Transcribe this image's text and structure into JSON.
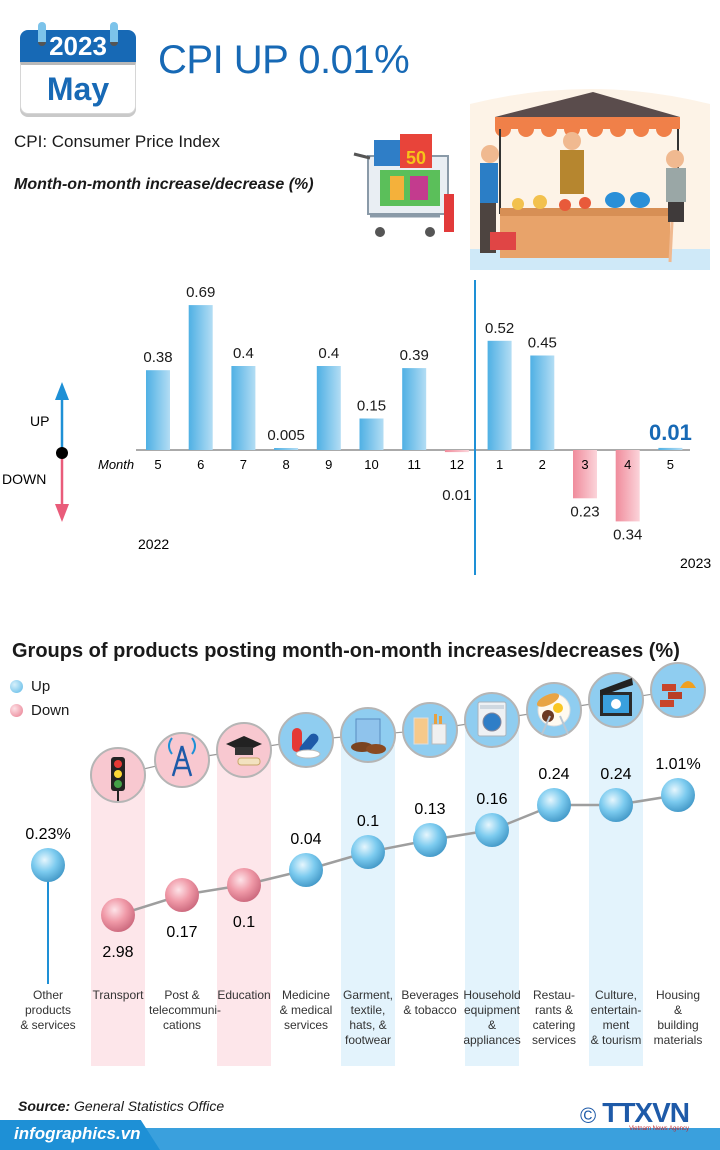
{
  "header": {
    "calendar_year": "2023",
    "calendar_month": "May",
    "title": "CPI UP 0.01%",
    "subtitle": "CPI: Consumer Price Index",
    "chart_caption": "Month-on-month increase/decrease (%)"
  },
  "direction_legend": {
    "up": "UP",
    "down": "DOWN"
  },
  "colors": {
    "up": "#5bb8e6",
    "down": "#f08c9c",
    "accent": "#1769b5",
    "highlight_up_band": "#e3f3fc",
    "highlight_down_band": "#fde6ea"
  },
  "chart_data": [
    {
      "type": "bar",
      "title": "Month-on-month increase/decrease (%)",
      "xlabel": "Month",
      "ylabel": "",
      "categories": [
        "5",
        "6",
        "7",
        "8",
        "9",
        "10",
        "11",
        "12",
        "1",
        "2",
        "3",
        "4",
        "5"
      ],
      "years": [
        {
          "label": "2022",
          "range": [
            0,
            7
          ]
        },
        {
          "label": "2023",
          "range": [
            8,
            12
          ]
        }
      ],
      "values": [
        0.38,
        0.69,
        0.4,
        0.005,
        0.4,
        0.15,
        0.39,
        -0.01,
        0.52,
        0.45,
        -0.23,
        -0.34,
        0.01
      ],
      "labels": [
        "0.38",
        "0.69",
        "0.4",
        "0.005",
        "0.4",
        "0.15",
        "0.39",
        "0.01",
        "0.52",
        "0.45",
        "0.23",
        "0.34",
        "0.01"
      ],
      "ylim": [
        -0.4,
        0.75
      ],
      "grid": false,
      "highlight_index": 12
    },
    {
      "type": "scatter",
      "title": "Groups of products posting month-on-month increases/decreases (%)",
      "legend": [
        {
          "name": "Up",
          "color": "#5bb8e6"
        },
        {
          "name": "Down",
          "color": "#f08c9c"
        }
      ],
      "legend_position": "top-left",
      "categories": [
        "Other products & services",
        "Transport",
        "Post & telecommunications",
        "Education",
        "Medicine & medical services",
        "Garment, textile, hats, & footwear",
        "Beverages & tobacco",
        "Household equipment & appliances",
        "Restaurants & catering services",
        "Culture, entertainment & tourism",
        "Housing & building materials"
      ],
      "category_lines": [
        [
          "Other",
          "products",
          "& services"
        ],
        [
          "Transport"
        ],
        [
          "Post &",
          "telecommuni-",
          "cations"
        ],
        [
          "Education"
        ],
        [
          "Medicine",
          "& medical",
          "services"
        ],
        [
          "Garment,",
          "textile,",
          "hats, &",
          "footwear"
        ],
        [
          "Beverages",
          "& tobacco"
        ],
        [
          "Household",
          "equipment",
          "&",
          "appliances"
        ],
        [
          "Restau-",
          "rants &",
          "catering",
          "services"
        ],
        [
          "Culture,",
          "entertain-",
          "ment",
          "& tourism"
        ],
        [
          "Housing",
          "&",
          "building",
          "materials"
        ]
      ],
      "values": [
        0.23,
        -2.98,
        -0.17,
        -0.1,
        0.04,
        0.1,
        0.13,
        0.16,
        0.24,
        0.24,
        1.01
      ],
      "labels": [
        "0.23%",
        "2.98",
        "0.17",
        "0.1",
        "0.04",
        "0.1",
        "0.13",
        "0.16",
        "0.24",
        "0.24",
        "1.01%"
      ],
      "directions": [
        "up",
        "down",
        "down",
        "down",
        "up",
        "up",
        "up",
        "up",
        "up",
        "up",
        "up"
      ],
      "icons": [
        "none",
        "traffic-light-icon",
        "antenna-tower-icon",
        "graduation-cap-icon",
        "pills-icon",
        "shirt-shoes-icon",
        "drink-cigarettes-icon",
        "washing-machine-icon",
        "meal-plate-icon",
        "clapperboard-icon",
        "bricks-helmet-icon"
      ]
    }
  ],
  "section": {
    "title": "Groups of products posting month-on-month increases/decreases (%)",
    "legend_up": "Up",
    "legend_down": "Down"
  },
  "footer": {
    "source_label": "Source:",
    "source_value": "General Statistics Office",
    "site": "infographics.vn",
    "copyright_symbol": "©",
    "agency_logo": "TTXVN",
    "agency_sub": "Vietnam News Agency"
  }
}
